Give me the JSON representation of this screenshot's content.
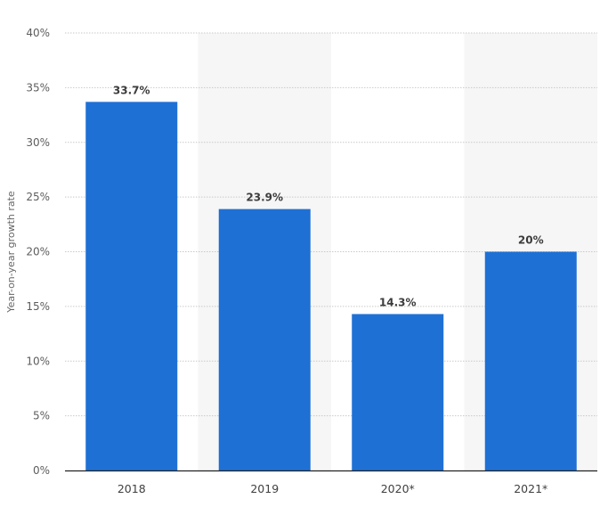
{
  "chart_data": {
    "type": "bar",
    "categories": [
      "2018",
      "2019",
      "2020*",
      "2021*"
    ],
    "values": [
      33.7,
      23.9,
      14.3,
      20
    ],
    "value_labels": [
      "33.7%",
      "23.9%",
      "14.3%",
      "20%"
    ],
    "title": "",
    "xlabel": "",
    "ylabel": "Year-on-year growth rate",
    "ylim": [
      0,
      40
    ],
    "yticks": [
      0,
      5,
      10,
      15,
      20,
      25,
      30,
      35,
      40
    ],
    "ytick_labels": [
      "0%",
      "5%",
      "10%",
      "15%",
      "20%",
      "25%",
      "30%",
      "35%",
      "40%"
    ],
    "grid": true,
    "bar_color": "#1f70d4",
    "band_color": "#f6f6f6",
    "grid_color": "#c9c9c9",
    "axis_color": "#222222"
  }
}
